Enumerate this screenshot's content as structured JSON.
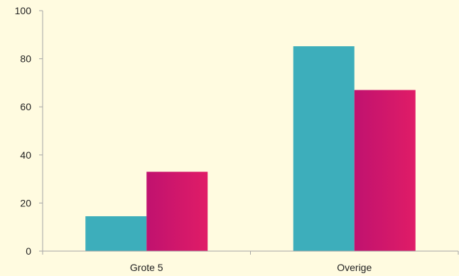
{
  "colors": {
    "background": "#FFFBE0",
    "axis": "#A6A6A6",
    "teal": "#3DAEBB",
    "pink_start": "#C0126F",
    "pink_end": "#E01C67"
  },
  "chart_data": {
    "type": "bar",
    "title": "",
    "xlabel": "",
    "ylabel": "",
    "categories": [
      "Grote 5",
      "Overige"
    ],
    "ylim": [
      0,
      100
    ],
    "yticks": [
      0,
      20,
      40,
      60,
      80,
      100
    ],
    "grid": false,
    "legend": "none",
    "series": [
      {
        "color": "#3DAEBB",
        "values": [
          14.5,
          85.2
        ]
      },
      {
        "color": "#D0146C",
        "values": [
          33,
          67
        ]
      }
    ]
  }
}
